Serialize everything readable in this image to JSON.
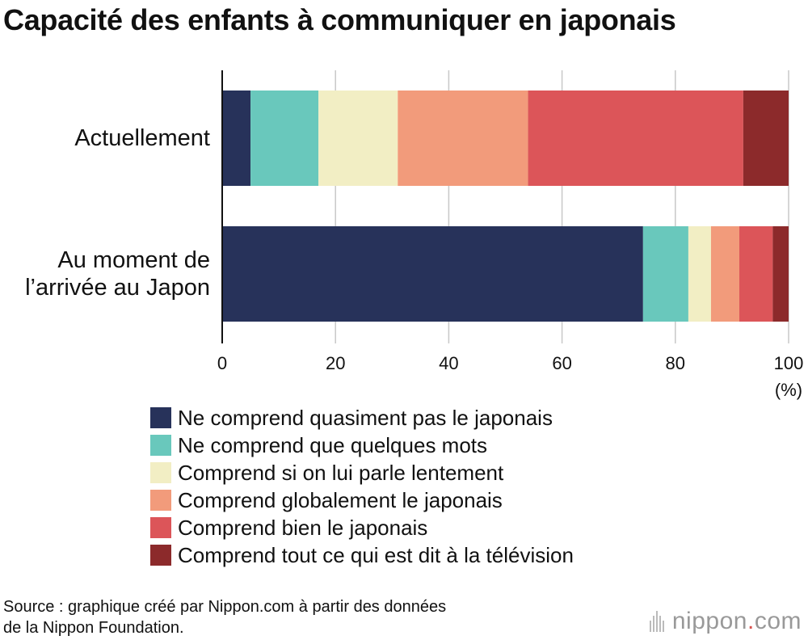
{
  "title": "Capacité des enfants à communiquer en japonais",
  "chart_data": {
    "type": "bar",
    "orientation": "horizontal",
    "stacked": true,
    "categories": [
      "Actuellement",
      "Au moment de\nl’arrivée au Japon"
    ],
    "category_lines": [
      [
        "Actuellement"
      ],
      [
        "Au moment de",
        "l’arrivée au Japon"
      ]
    ],
    "series": [
      {
        "name": "Ne comprend quasiment pas le japonais",
        "color": "#27325a",
        "values": [
          5,
          74.3
        ]
      },
      {
        "name": "Ne comprend que quelques mots",
        "color": "#69c8bc",
        "values": [
          12,
          8
        ]
      },
      {
        "name": "Comprend si on lui parle lentement",
        "color": "#f2eec4",
        "values": [
          14,
          4
        ]
      },
      {
        "name": "Comprend globalement le japonais",
        "color": "#f29b7b",
        "values": [
          23,
          5
        ]
      },
      {
        "name": "Comprend bien le japonais",
        "color": "#dc5559",
        "values": [
          38,
          5.9
        ]
      },
      {
        "name": "Comprend tout ce qui est dit à la télévision",
        "color": "#8c2a2b",
        "values": [
          8,
          2.8
        ]
      }
    ],
    "xlim": [
      0,
      100
    ],
    "xticks": [
      0,
      20,
      40,
      60,
      80,
      100
    ],
    "xlabel": "(%)",
    "grid": true,
    "legend_position": "bottom"
  },
  "source": "Source : graphique créé par Nippon.com à partir des données de la Nippon Foundation.",
  "source_lines": [
    "Source : graphique créé par Nippon.com à partir des données",
    "de la Nippon Foundation."
  ],
  "logo": {
    "text": "nippon",
    "dot": ".",
    "suffix": "com"
  }
}
